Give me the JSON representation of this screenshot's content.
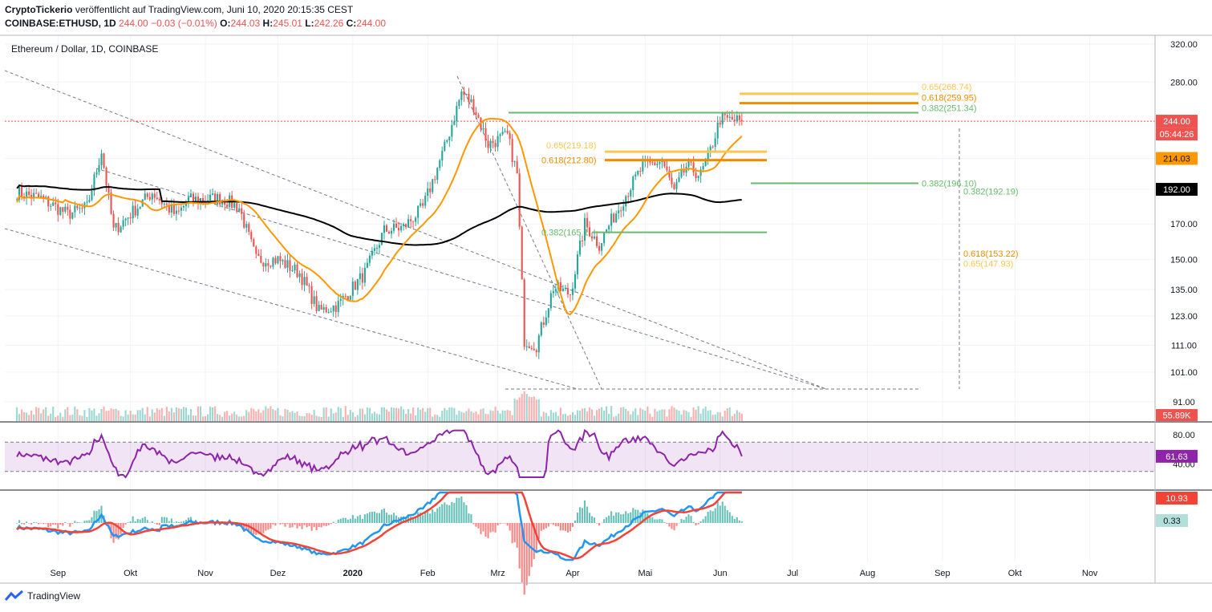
{
  "header": {
    "publisher": "CryptoTickerio",
    "published_text": "veröffentlicht auf TradingView.com, Juni 10, 2020 20:15:35 CEST",
    "symbol": "COINBASE:ETHUSD, 1D",
    "last": "244.00",
    "change": "−0.03 (−0.01%)",
    "o_label": "O:",
    "o_value": "244.03",
    "h_label": "H:",
    "h_value": "245.01",
    "l_label": "L:",
    "l_value": "242.26",
    "c_label": "C:",
    "c_value": "244.00"
  },
  "footer": {
    "brand": "TradingView"
  },
  "colors": {
    "up": "#26a69a",
    "down": "#ef5350",
    "ma_slow": "#000000",
    "ma_fast": "#ff9800",
    "rsi": "#8e24aa",
    "macd": "#2196f3",
    "signal": "#f44336",
    "fib_green": "#66bb6a",
    "fib_orange": "#ff9800",
    "fib_yellow": "#ffeb3b"
  },
  "chart_data": {
    "type": "candlestick",
    "title": "Ethereum / Dollar, 1D, COINBASE",
    "price_axis": {
      "scale": "log",
      "ticks": [
        "320.00",
        "280.00",
        "244.00",
        "214.03",
        "192.00",
        "170.00",
        "150.00",
        "135.00",
        "123.00",
        "111.00",
        "101.00",
        "91.00"
      ]
    },
    "time_axis": {
      "ticks": [
        "Sep",
        "Okt",
        "Nov",
        "Dez",
        "2020",
        "Feb",
        "Mrz",
        "Apr",
        "Mai",
        "Jun",
        "Jul",
        "Aug",
        "Sep",
        "Okt",
        "Nov"
      ]
    },
    "price_labels": {
      "last": "244.00",
      "countdown": "05:44:26",
      "ma_fast": "214.03",
      "ma_slow": "192.00",
      "volume": "55.89K"
    },
    "close_anchors": [
      {
        "date": "2019-08-15",
        "close": 190
      },
      {
        "date": "2019-08-25",
        "close": 186
      },
      {
        "date": "2019-09-05",
        "close": 176
      },
      {
        "date": "2019-09-13",
        "close": 180
      },
      {
        "date": "2019-09-19",
        "close": 220
      },
      {
        "date": "2019-09-24",
        "close": 166
      },
      {
        "date": "2019-10-10",
        "close": 190
      },
      {
        "date": "2019-10-20",
        "close": 175
      },
      {
        "date": "2019-10-25",
        "close": 185
      },
      {
        "date": "2019-11-08",
        "close": 186
      },
      {
        "date": "2019-11-15",
        "close": 180
      },
      {
        "date": "2019-11-22",
        "close": 150
      },
      {
        "date": "2019-12-01",
        "close": 150
      },
      {
        "date": "2019-12-10",
        "close": 143
      },
      {
        "date": "2019-12-18",
        "close": 125
      },
      {
        "date": "2019-12-26",
        "close": 128
      },
      {
        "date": "2020-01-06",
        "close": 143
      },
      {
        "date": "2020-01-14",
        "close": 166
      },
      {
        "date": "2020-01-22",
        "close": 168
      },
      {
        "date": "2020-01-30",
        "close": 180
      },
      {
        "date": "2020-02-08",
        "close": 222
      },
      {
        "date": "2020-02-15",
        "close": 270
      },
      {
        "date": "2020-02-20",
        "close": 258
      },
      {
        "date": "2020-02-26",
        "close": 225
      },
      {
        "date": "2020-03-05",
        "close": 232
      },
      {
        "date": "2020-03-09",
        "close": 202
      },
      {
        "date": "2020-03-12",
        "close": 113
      },
      {
        "date": "2020-03-17",
        "close": 111
      },
      {
        "date": "2020-03-24",
        "close": 136
      },
      {
        "date": "2020-03-31",
        "close": 133
      },
      {
        "date": "2020-04-06",
        "close": 170
      },
      {
        "date": "2020-04-12",
        "close": 158
      },
      {
        "date": "2020-04-17",
        "close": 172
      },
      {
        "date": "2020-04-25",
        "close": 194
      },
      {
        "date": "2020-04-30",
        "close": 208
      },
      {
        "date": "2020-05-08",
        "close": 212
      },
      {
        "date": "2020-05-13",
        "close": 190
      },
      {
        "date": "2020-05-18",
        "close": 208
      },
      {
        "date": "2020-05-24",
        "close": 202
      },
      {
        "date": "2020-05-28",
        "close": 220
      },
      {
        "date": "2020-06-01",
        "close": 246
      },
      {
        "date": "2020-06-10",
        "close": 244
      }
    ],
    "fib_levels": [
      {
        "label": "0.65(268.74)",
        "color": "#f9c74f"
      },
      {
        "label": "0.618(259.95)",
        "color": "#f08c00"
      },
      {
        "label": "0.382(251.34)",
        "color": "#66bb6a"
      },
      {
        "label": "0.65(219.18)",
        "color": "#f9c74f"
      },
      {
        "label": "0.618(212.80)",
        "color": "#f08c00"
      },
      {
        "label": "0.382(196.10)",
        "color": "#66bb6a"
      },
      {
        "label": "0.382(192.19)",
        "color": "#66bb6a"
      },
      {
        "label": "0.382(165.1",
        "color": "#66bb6a"
      },
      {
        "label": "0.618(153.22)",
        "color": "#f08c00"
      },
      {
        "label": "0.65(147.93)",
        "color": "#f9c74f"
      }
    ],
    "rsi": {
      "ticks": [
        "80.00",
        "40.00"
      ],
      "value": "61.63",
      "upper": 70,
      "lower": 30
    },
    "macd": {
      "macd_value": "10.93",
      "hist_value": "0.33"
    }
  }
}
